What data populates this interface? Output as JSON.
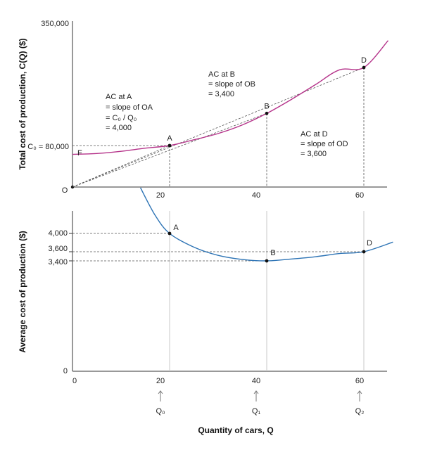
{
  "chart_data": [
    {
      "type": "line",
      "ylabel": "Total cost of production, C(Q) ($)",
      "ylim": [
        0,
        350000
      ],
      "xlim": [
        0,
        66
      ],
      "y_top_tick": "350,000",
      "origin_label": "O",
      "fixed_cost_label": "F",
      "fixed_cost": 63000,
      "c0_label": "C₀ = 80,000",
      "x_ticks": [
        "20",
        "40",
        "60"
      ],
      "series": [
        {
          "color": "#b5338a",
          "x": [
            0,
            5,
            10,
            15,
            20,
            25,
            30,
            35,
            40,
            45,
            50,
            55,
            60,
            65
          ],
          "y": [
            63000,
            64600,
            68900,
            75000,
            80000,
            90000,
            101000,
            116000,
            136000,
            160000,
            186000,
            212000,
            216000,
            263000
          ]
        }
      ],
      "points": [
        {
          "label": "A",
          "x": 20,
          "y": 80000
        },
        {
          "label": "B",
          "x": 40,
          "y": 136000
        },
        {
          "label": "D",
          "x": 60,
          "y": 216000
        }
      ],
      "annotations": [
        {
          "lines": [
            "AC at A",
            "= slope of OA",
            "= C₀ / Q₀",
            "= 4,000"
          ]
        },
        {
          "lines": [
            "AC at B",
            "= slope of OB",
            "= 3,400"
          ]
        },
        {
          "lines": [
            "AC at D",
            "= slope of OD",
            "= 3,600"
          ]
        }
      ]
    },
    {
      "type": "line",
      "ylabel": "Average cost of production ($)",
      "xlabel": "Quantity of cars, Q",
      "ylim": [
        0,
        5200
      ],
      "xlim": [
        0,
        66
      ],
      "y_ticks": [
        "4,000",
        "3,600",
        "3,400",
        "0"
      ],
      "x_ticks": [
        "0",
        "20",
        "40",
        "60"
      ],
      "q_labels": [
        "Q₀",
        "Q₁",
        "Q₂"
      ],
      "series": [
        {
          "color": "#2e74b5",
          "x": [
            14,
            17,
            20,
            25,
            30,
            35,
            40,
            45,
            50,
            55,
            60,
            66
          ],
          "y": [
            5000,
            4400,
            4000,
            3700,
            3520,
            3430,
            3400,
            3440,
            3490,
            3560,
            3600,
            3810
          ]
        }
      ],
      "points": [
        {
          "label": "A",
          "x": 20,
          "y": 4000
        },
        {
          "label": "B",
          "x": 40,
          "y": 3400
        },
        {
          "label": "D",
          "x": 60,
          "y": 3600
        }
      ]
    }
  ]
}
